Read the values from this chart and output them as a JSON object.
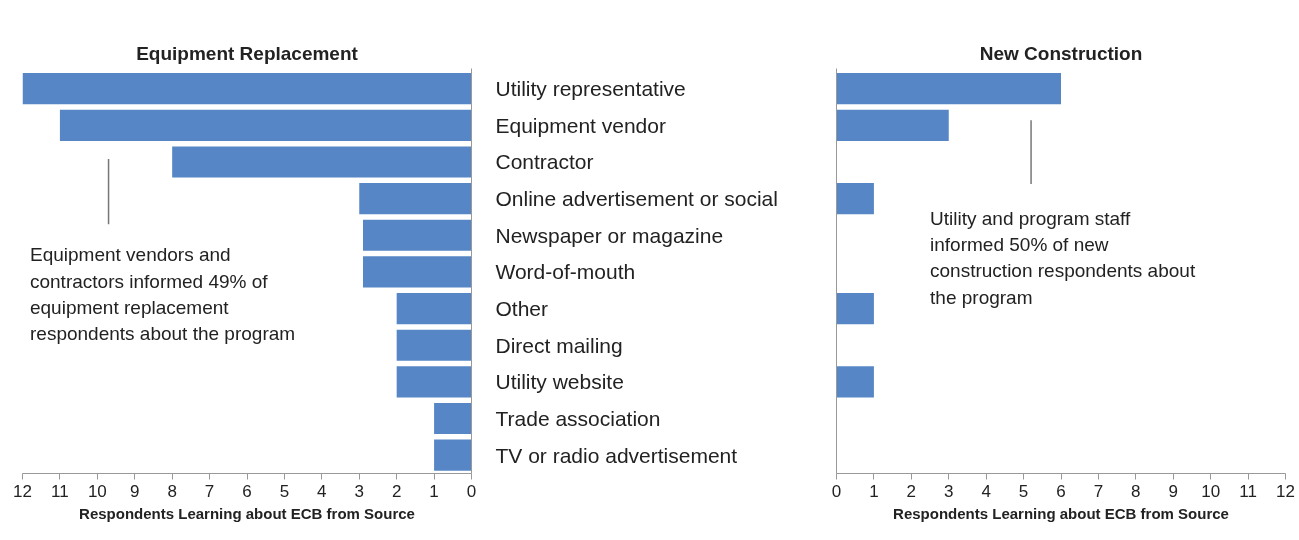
{
  "chart_data": [
    {
      "type": "bar",
      "orientation": "horizontal",
      "title": "Equipment Replacement",
      "xlabel": "Respondents Learning about ECB from Source",
      "categories": [
        "Utility representative",
        "Equipment vendor",
        "Contractor",
        "Online advertisement or social",
        "Newspaper or magazine",
        "Word-of-mouth",
        "Other",
        "Direct mailing",
        "Utility website",
        "Trade association",
        "TV or radio advertisement"
      ],
      "values": [
        12,
        11,
        8,
        3,
        2.9,
        2.9,
        2,
        2,
        2,
        1,
        1
      ],
      "color": "#5686c6",
      "xlim": [
        12,
        0
      ],
      "xticks": [
        12,
        11,
        10,
        9,
        8,
        7,
        6,
        5,
        4,
        3,
        2,
        1,
        0
      ],
      "grid": false,
      "annotations": [
        "Equipment vendors and contractors informed 49% of equipment replacement respondents about the program"
      ]
    },
    {
      "type": "bar",
      "orientation": "horizontal",
      "title": "New Construction",
      "xlabel": "Respondents Learning about ECB from Source",
      "categories": [
        null,
        null,
        null,
        null,
        null,
        null,
        null,
        null,
        null,
        null,
        null
      ],
      "values": [
        6,
        3,
        0,
        1,
        0,
        0,
        1,
        0,
        1,
        0,
        0
      ],
      "color": "#5686c6",
      "xlim": [
        0,
        12
      ],
      "xticks": [
        0,
        1,
        2,
        3,
        4,
        5,
        6,
        7,
        8,
        9,
        10,
        11,
        12
      ],
      "grid": false,
      "tick_labels": "x",
      "annotations": [
        "Utility and program staff informed 50% of new construction respondents about the program"
      ]
    }
  ]
}
